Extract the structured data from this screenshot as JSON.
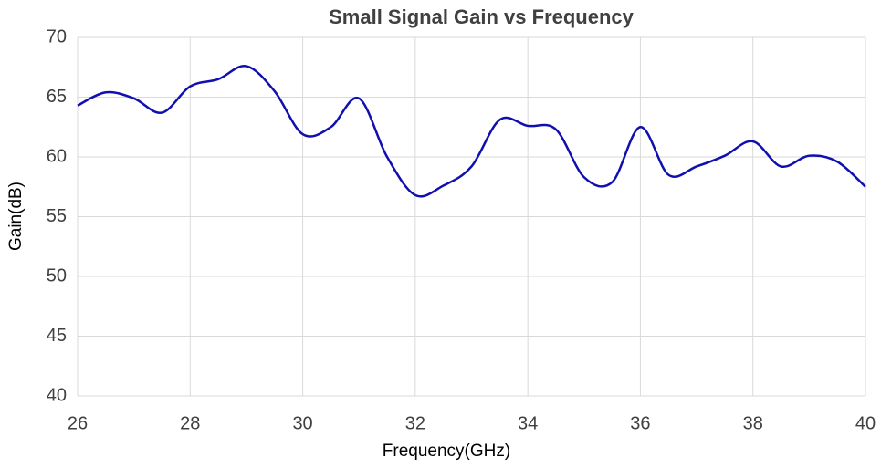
{
  "chart_data": {
    "type": "line",
    "title": "Small Signal Gain vs Frequency",
    "x_label": "Frequency(GHz)",
    "y_label": "Gain(dB)",
    "x": [
      26,
      26.5,
      27,
      27.5,
      28,
      28.5,
      29,
      29.5,
      30,
      30.5,
      31,
      31.5,
      32,
      32.5,
      33,
      33.5,
      34,
      34.5,
      35,
      35.5,
      36,
      36.5,
      37,
      37.5,
      38,
      38.5,
      39,
      39.5,
      40
    ],
    "series": [
      {
        "name": "Gain",
        "color": "#1010b0",
        "values": [
          64.3,
          65.4,
          64.9,
          63.7,
          65.9,
          66.5,
          67.6,
          65.5,
          61.9,
          62.5,
          64.9,
          60.0,
          56.8,
          57.6,
          59.2,
          63.1,
          62.6,
          62.3,
          58.3,
          57.9,
          62.5,
          58.5,
          59.2,
          60.1,
          61.3,
          59.2,
          60.1,
          59.6,
          57.5
        ]
      }
    ],
    "xlim": [
      26,
      40
    ],
    "xticks": [
      26,
      28,
      30,
      32,
      34,
      36,
      38,
      40
    ],
    "ylim": [
      40,
      70
    ],
    "yticks": [
      40,
      45,
      50,
      55,
      60,
      65,
      70
    ],
    "grid": true
  }
}
